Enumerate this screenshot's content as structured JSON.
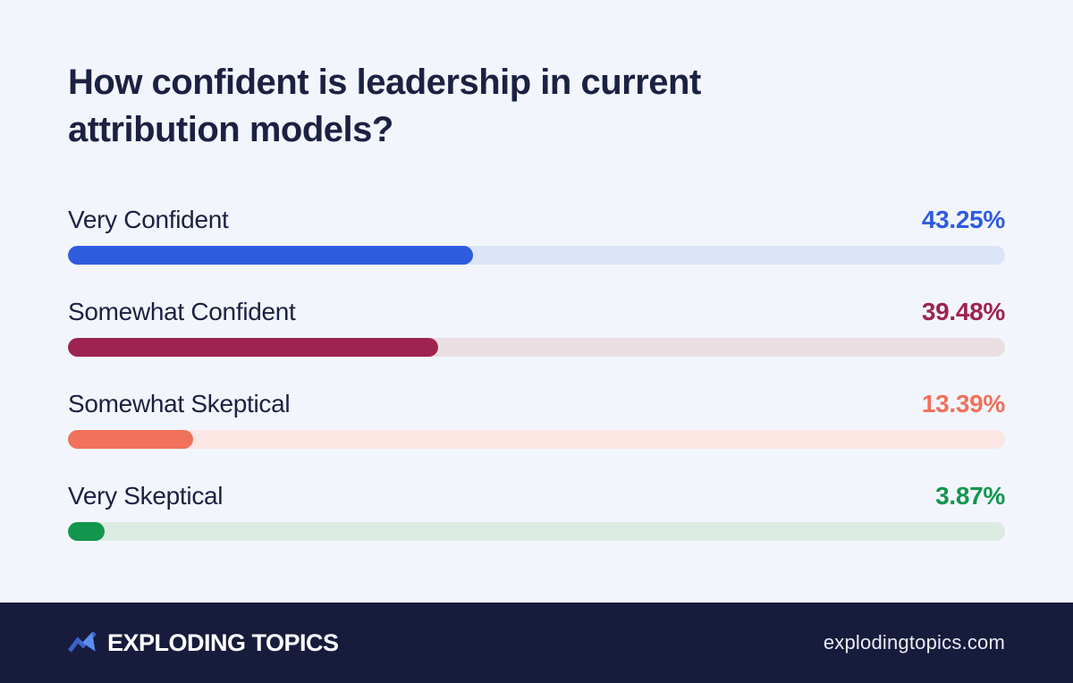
{
  "title": "How confident is leadership in current attribution models?",
  "chart_data": {
    "type": "bar",
    "orientation": "horizontal",
    "title": "How confident is leadership in current attribution models?",
    "categories": [
      "Very Confident",
      "Somewhat Confident",
      "Somewhat Skeptical",
      "Very Skeptical"
    ],
    "values": [
      43.25,
      39.48,
      13.39,
      3.87
    ],
    "value_labels": [
      "43.25%",
      "39.48%",
      "13.39%",
      "3.87%"
    ],
    "xlim": [
      0,
      100
    ],
    "grid": false,
    "legend": false
  },
  "rows": [
    {
      "label": "Very Confident",
      "value": "43.25%",
      "pct": 43.25,
      "fill": "#2e5cdf",
      "track": "#dbe4f8",
      "value_color": "#2e5cdf"
    },
    {
      "label": "Somewhat Confident",
      "value": "39.48%",
      "pct": 39.48,
      "fill": "#9e2350",
      "track": "#e9dfe3",
      "value_color": "#9e2350"
    },
    {
      "label": "Somewhat Skeptical",
      "value": "13.39%",
      "pct": 13.39,
      "fill": "#f0715c",
      "track": "#fbe6e4",
      "value_color": "#f0715c"
    },
    {
      "label": "Very Skeptical",
      "value": "3.87%",
      "pct": 3.87,
      "fill": "#12964e",
      "track": "#dcebe1",
      "value_color": "#12964e"
    }
  ],
  "footer": {
    "brand": "EXPLODING TOPICS",
    "site": "explodingtopics.com"
  },
  "colors": {
    "background": "#f2f6fc",
    "text": "#1b2142",
    "footer_background": "#171b3c",
    "logo_blue_dark": "#3a63c9",
    "logo_blue_light": "#5b8cf0"
  }
}
